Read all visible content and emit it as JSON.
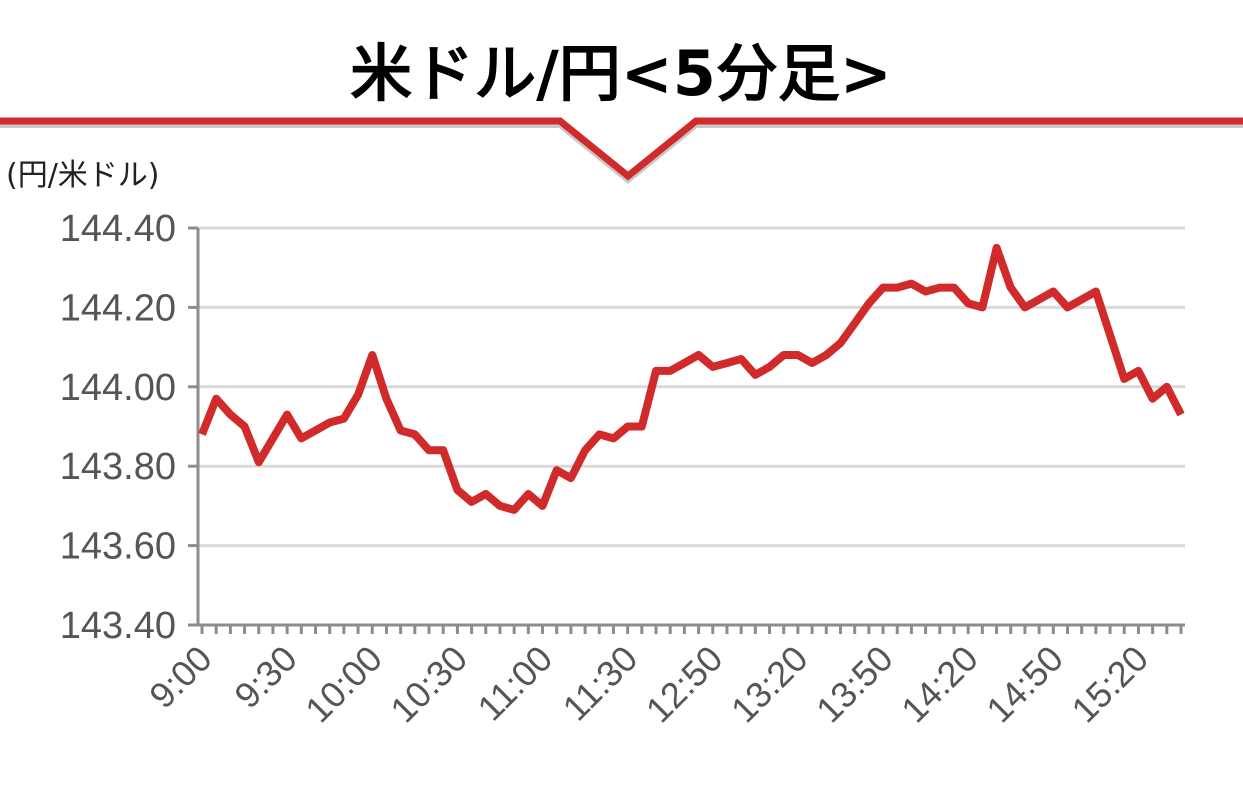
{
  "header": {
    "title": "米ドル/円<5分足>",
    "accent_color": "#d12a2a"
  },
  "chart_data": {
    "type": "line",
    "title": "米ドル/円<5分足>",
    "ylabel": "(円/米ドル)",
    "xlabel": "",
    "ylim": [
      143.4,
      144.4
    ],
    "yticks": [
      143.4,
      143.6,
      143.8,
      144.0,
      144.2,
      144.4
    ],
    "ytick_labels": [
      "143.40",
      "143.60",
      "143.80",
      "144.00",
      "144.20",
      "144.40"
    ],
    "xtick_labels": [
      "9:00",
      "9:30",
      "10:00",
      "10:30",
      "11:00",
      "11:30",
      "12:50",
      "13:20",
      "13:50",
      "14:20",
      "14:50",
      "15:20"
    ],
    "xtick_label_indices": [
      0,
      6,
      12,
      18,
      24,
      30,
      36,
      42,
      48,
      54,
      60,
      66
    ],
    "grid": true,
    "series": [
      {
        "color": "#d12a2a",
        "values": [
          143.88,
          143.97,
          143.93,
          143.9,
          143.81,
          143.87,
          143.93,
          143.87,
          143.89,
          143.91,
          143.92,
          143.98,
          144.08,
          143.97,
          143.89,
          143.88,
          143.84,
          143.84,
          143.74,
          143.71,
          143.73,
          143.7,
          143.69,
          143.73,
          143.7,
          143.79,
          143.77,
          143.84,
          143.88,
          143.87,
          143.9,
          143.9,
          144.04,
          144.04,
          144.06,
          144.08,
          144.05,
          144.06,
          144.07,
          144.03,
          144.05,
          144.08,
          144.08,
          144.06,
          144.08,
          144.11,
          144.16,
          144.21,
          144.25,
          144.25,
          144.26,
          144.24,
          144.25,
          144.25,
          144.21,
          144.2,
          144.35,
          144.25,
          144.2,
          144.22,
          144.24,
          144.2,
          144.22,
          144.24,
          144.13,
          144.02,
          144.04,
          143.97,
          144.0,
          143.93
        ]
      }
    ]
  }
}
